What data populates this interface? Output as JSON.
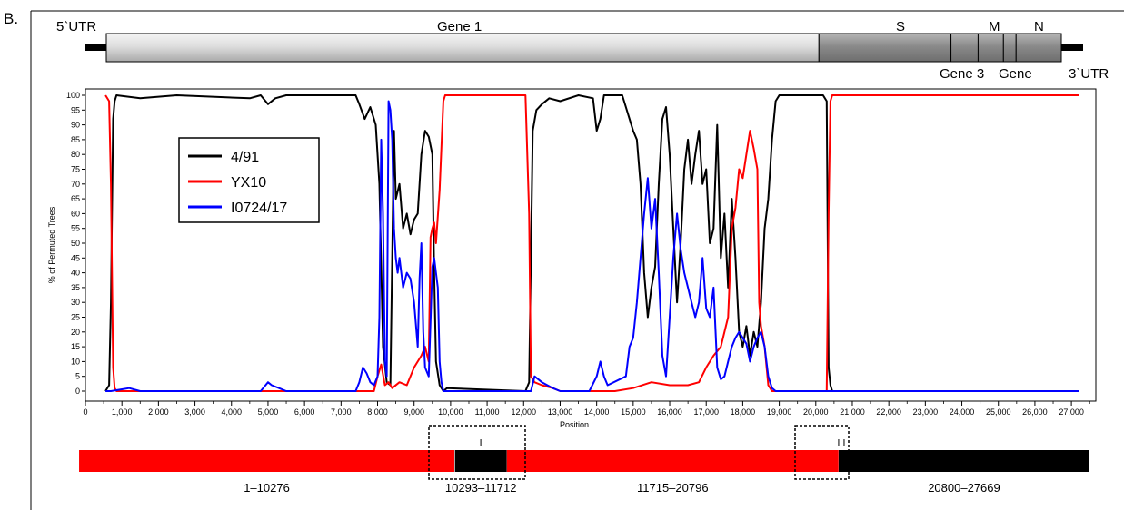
{
  "panel_label": "B.",
  "genome_map": {
    "utr5": "5`UTR",
    "utr3": "3`UTR",
    "gene1": "Gene 1",
    "s": "S",
    "m": "M",
    "n": "N",
    "gene3": "Gene 3",
    "gene5": "Gene",
    "genome_length": 27669,
    "segments": [
      {
        "name": "Gene 1",
        "start": 600,
        "end": 20300,
        "fill": "light"
      },
      {
        "name": "S",
        "start": 20300,
        "end": 23950,
        "fill": "dark"
      },
      {
        "name": "Gene 3",
        "start": 23950,
        "end": 24700,
        "fill": "dark"
      },
      {
        "name": "M",
        "start": 24700,
        "end": 25400,
        "fill": "dark"
      },
      {
        "name": "Gene 5",
        "start": 25400,
        "end": 25750,
        "fill": "dark"
      },
      {
        "name": "N",
        "start": 25750,
        "end": 27000,
        "fill": "dark"
      }
    ],
    "utr5_range": [
      0,
      600
    ],
    "utr3_range": [
      27000,
      27669
    ]
  },
  "chart_data": {
    "type": "line",
    "ylabel": "% of Permuted Trees",
    "xlabel": "Position",
    "xlim": [
      0,
      27669
    ],
    "ylim": [
      0,
      100
    ],
    "x_ticks": [
      0,
      1000,
      2000,
      3000,
      4000,
      5000,
      6000,
      7000,
      8000,
      9000,
      10000,
      11000,
      12000,
      13000,
      14000,
      15000,
      16000,
      17000,
      18000,
      19000,
      20000,
      21000,
      22000,
      23000,
      24000,
      25000,
      26000,
      27000
    ],
    "x_tick_labels": [
      "0",
      "1,000",
      "2,000",
      "3,000",
      "4,000",
      "5,000",
      "6,000",
      "7,000",
      "8,000",
      "9,000",
      "10,000",
      "11,000",
      "12,000",
      "13,000",
      "14,000",
      "15,000",
      "16,000",
      "17,000",
      "18,000",
      "19,000",
      "20,000",
      "21,000",
      "22,000",
      "23,000",
      "24,000",
      "25,000",
      "26,000",
      "27,000"
    ],
    "y_ticks": [
      0,
      5,
      10,
      15,
      20,
      25,
      30,
      35,
      40,
      45,
      50,
      55,
      60,
      65,
      70,
      75,
      80,
      85,
      90,
      95,
      100
    ],
    "legend_position": "upper-left",
    "series": [
      {
        "name": "4/91",
        "color": "#000000",
        "points": [
          [
            550,
            0
          ],
          [
            650,
            2
          ],
          [
            700,
            30
          ],
          [
            760,
            92
          ],
          [
            800,
            98
          ],
          [
            850,
            100
          ],
          [
            1500,
            99
          ],
          [
            2500,
            100
          ],
          [
            4500,
            99
          ],
          [
            4800,
            100
          ],
          [
            5000,
            97
          ],
          [
            5200,
            99
          ],
          [
            5500,
            100
          ],
          [
            7400,
            100
          ],
          [
            7500,
            97
          ],
          [
            7650,
            92
          ],
          [
            7800,
            96
          ],
          [
            7950,
            90
          ],
          [
            8050,
            70
          ],
          [
            8150,
            15
          ],
          [
            8250,
            3
          ],
          [
            8350,
            2
          ],
          [
            8400,
            45
          ],
          [
            8450,
            88
          ],
          [
            8500,
            65
          ],
          [
            8600,
            70
          ],
          [
            8700,
            55
          ],
          [
            8800,
            60
          ],
          [
            8900,
            53
          ],
          [
            9000,
            58
          ],
          [
            9100,
            60
          ],
          [
            9200,
            80
          ],
          [
            9300,
            88
          ],
          [
            9400,
            86
          ],
          [
            9500,
            80
          ],
          [
            9550,
            40
          ],
          [
            9600,
            10
          ],
          [
            9700,
            2
          ],
          [
            9800,
            0
          ],
          [
            9900,
            1
          ],
          [
            12050,
            0
          ],
          [
            12150,
            3
          ],
          [
            12250,
            88
          ],
          [
            12350,
            95
          ],
          [
            12500,
            97
          ],
          [
            12700,
            99
          ],
          [
            13000,
            98
          ],
          [
            13500,
            100
          ],
          [
            13900,
            99
          ],
          [
            14000,
            88
          ],
          [
            14100,
            92
          ],
          [
            14200,
            100
          ],
          [
            14700,
            100
          ],
          [
            14800,
            96
          ],
          [
            14900,
            92
          ],
          [
            15000,
            88
          ],
          [
            15100,
            85
          ],
          [
            15200,
            70
          ],
          [
            15300,
            40
          ],
          [
            15400,
            25
          ],
          [
            15500,
            35
          ],
          [
            15600,
            42
          ],
          [
            15700,
            70
          ],
          [
            15800,
            92
          ],
          [
            15900,
            96
          ],
          [
            16000,
            80
          ],
          [
            16100,
            55
          ],
          [
            16200,
            30
          ],
          [
            16300,
            50
          ],
          [
            16400,
            75
          ],
          [
            16500,
            85
          ],
          [
            16600,
            70
          ],
          [
            16700,
            80
          ],
          [
            16800,
            88
          ],
          [
            16900,
            70
          ],
          [
            17000,
            75
          ],
          [
            17100,
            50
          ],
          [
            17200,
            55
          ],
          [
            17300,
            90
          ],
          [
            17400,
            45
          ],
          [
            17500,
            60
          ],
          [
            17600,
            35
          ],
          [
            17700,
            65
          ],
          [
            17800,
            45
          ],
          [
            17900,
            20
          ],
          [
            18000,
            15
          ],
          [
            18100,
            22
          ],
          [
            18200,
            12
          ],
          [
            18300,
            20
          ],
          [
            18400,
            15
          ],
          [
            18500,
            30
          ],
          [
            18600,
            55
          ],
          [
            18700,
            65
          ],
          [
            18800,
            85
          ],
          [
            18900,
            98
          ],
          [
            19000,
            100
          ],
          [
            20200,
            100
          ],
          [
            20300,
            98
          ],
          [
            20350,
            8
          ],
          [
            20400,
            2
          ],
          [
            20450,
            0
          ],
          [
            27200,
            0
          ]
        ]
      },
      {
        "name": "YX10",
        "color": "#ff0000",
        "points": [
          [
            550,
            100
          ],
          [
            650,
            98
          ],
          [
            700,
            70
          ],
          [
            760,
            8
          ],
          [
            800,
            1
          ],
          [
            850,
            0
          ],
          [
            7900,
            0
          ],
          [
            8000,
            5
          ],
          [
            8100,
            9
          ],
          [
            8200,
            2
          ],
          [
            8300,
            3
          ],
          [
            8400,
            1
          ],
          [
            8600,
            3
          ],
          [
            8800,
            2
          ],
          [
            9000,
            8
          ],
          [
            9200,
            12
          ],
          [
            9300,
            15
          ],
          [
            9400,
            10
          ],
          [
            9450,
            52
          ],
          [
            9500,
            55
          ],
          [
            9550,
            57
          ],
          [
            9600,
            50
          ],
          [
            9700,
            68
          ],
          [
            9800,
            98
          ],
          [
            9850,
            100
          ],
          [
            12050,
            100
          ],
          [
            12150,
            60
          ],
          [
            12200,
            5
          ],
          [
            12300,
            3
          ],
          [
            12500,
            2
          ],
          [
            12800,
            1
          ],
          [
            13000,
            0
          ],
          [
            14500,
            0
          ],
          [
            15000,
            1
          ],
          [
            15500,
            3
          ],
          [
            16000,
            2
          ],
          [
            16500,
            2
          ],
          [
            16800,
            3
          ],
          [
            17000,
            8
          ],
          [
            17200,
            12
          ],
          [
            17400,
            15
          ],
          [
            17600,
            25
          ],
          [
            17700,
            55
          ],
          [
            17800,
            62
          ],
          [
            17900,
            75
          ],
          [
            18000,
            72
          ],
          [
            18100,
            80
          ],
          [
            18200,
            88
          ],
          [
            18300,
            82
          ],
          [
            18400,
            75
          ],
          [
            18450,
            30
          ],
          [
            18500,
            22
          ],
          [
            18600,
            15
          ],
          [
            18700,
            2
          ],
          [
            18800,
            0
          ],
          [
            20300,
            0
          ],
          [
            20350,
            60
          ],
          [
            20400,
            98
          ],
          [
            20450,
            100
          ],
          [
            27200,
            100
          ]
        ]
      },
      {
        "name": "I0724/17",
        "color": "#0000ff",
        "points": [
          [
            550,
            0
          ],
          [
            700,
            0
          ],
          [
            1200,
            1
          ],
          [
            1500,
            0
          ],
          [
            4800,
            0
          ],
          [
            5000,
            3
          ],
          [
            5100,
            2
          ],
          [
            5300,
            1
          ],
          [
            5500,
            0
          ],
          [
            7400,
            0
          ],
          [
            7500,
            3
          ],
          [
            7600,
            8
          ],
          [
            7700,
            6
          ],
          [
            7800,
            3
          ],
          [
            7900,
            2
          ],
          [
            8000,
            5
          ],
          [
            8050,
            25
          ],
          [
            8100,
            85
          ],
          [
            8150,
            60
          ],
          [
            8200,
            10
          ],
          [
            8250,
            5
          ],
          [
            8300,
            98
          ],
          [
            8350,
            95
          ],
          [
            8400,
            85
          ],
          [
            8450,
            55
          ],
          [
            8500,
            45
          ],
          [
            8550,
            40
          ],
          [
            8600,
            45
          ],
          [
            8700,
            35
          ],
          [
            8800,
            40
          ],
          [
            8900,
            38
          ],
          [
            9000,
            30
          ],
          [
            9100,
            15
          ],
          [
            9150,
            38
          ],
          [
            9200,
            50
          ],
          [
            9250,
            20
          ],
          [
            9300,
            8
          ],
          [
            9400,
            5
          ],
          [
            9500,
            42
          ],
          [
            9550,
            45
          ],
          [
            9600,
            40
          ],
          [
            9650,
            35
          ],
          [
            9700,
            10
          ],
          [
            9750,
            3
          ],
          [
            9800,
            0
          ],
          [
            12200,
            0
          ],
          [
            12300,
            5
          ],
          [
            12500,
            3
          ],
          [
            12800,
            1
          ],
          [
            13000,
            0
          ],
          [
            13800,
            0
          ],
          [
            14000,
            5
          ],
          [
            14100,
            10
          ],
          [
            14200,
            5
          ],
          [
            14300,
            2
          ],
          [
            14800,
            5
          ],
          [
            14900,
            15
          ],
          [
            15000,
            18
          ],
          [
            15100,
            30
          ],
          [
            15200,
            45
          ],
          [
            15300,
            60
          ],
          [
            15400,
            72
          ],
          [
            15500,
            55
          ],
          [
            15600,
            65
          ],
          [
            15700,
            40
          ],
          [
            15800,
            12
          ],
          [
            15900,
            5
          ],
          [
            16000,
            25
          ],
          [
            16100,
            45
          ],
          [
            16200,
            60
          ],
          [
            16300,
            48
          ],
          [
            16400,
            40
          ],
          [
            16500,
            35
          ],
          [
            16600,
            30
          ],
          [
            16700,
            25
          ],
          [
            16800,
            30
          ],
          [
            16900,
            45
          ],
          [
            17000,
            28
          ],
          [
            17100,
            25
          ],
          [
            17200,
            35
          ],
          [
            17300,
            8
          ],
          [
            17400,
            4
          ],
          [
            17500,
            5
          ],
          [
            17600,
            10
          ],
          [
            17700,
            15
          ],
          [
            17800,
            18
          ],
          [
            17900,
            20
          ],
          [
            18000,
            18
          ],
          [
            18100,
            16
          ],
          [
            18200,
            10
          ],
          [
            18300,
            15
          ],
          [
            18400,
            18
          ],
          [
            18500,
            20
          ],
          [
            18600,
            15
          ],
          [
            18700,
            5
          ],
          [
            18800,
            1
          ],
          [
            18900,
            0
          ],
          [
            27200,
            0
          ]
        ]
      }
    ]
  },
  "recombination_map": {
    "segments": [
      {
        "start": 1,
        "end": 10276,
        "color": "#ff0000",
        "label": "1–10276"
      },
      {
        "start": 10293,
        "end": 11712,
        "color": "#000000",
        "label": "10293–11712"
      },
      {
        "start": 11715,
        "end": 20796,
        "color": "#ff0000",
        "label": "11715–20796"
      },
      {
        "start": 20800,
        "end": 27669,
        "color": "#000000",
        "label": "20800–27669"
      }
    ],
    "breakpoint_ticks": [
      11000,
      20800,
      20950
    ]
  }
}
